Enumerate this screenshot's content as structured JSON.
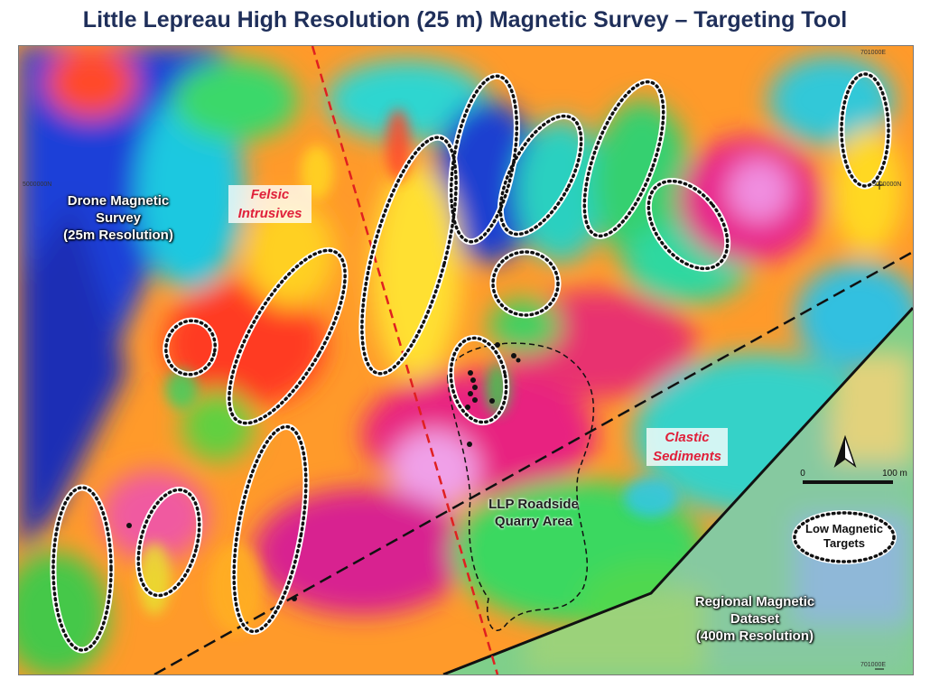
{
  "title": "Little Lepreau High Resolution (25 m) Magnetic Survey – Targeting Tool",
  "map": {
    "labels": {
      "drone_line1": "Drone Magnetic",
      "drone_line2": "Survey",
      "drone_line3": "(25m Resolution)",
      "felsic_line1": "Felsic",
      "felsic_line2": "Intrusives",
      "clastic_line1": "Clastic",
      "clastic_line2": "Sediments",
      "quarry_line1": "LLP Roadside",
      "quarry_line2": "Quarry Area",
      "regional_line1": "Regional Magnetic",
      "regional_line2": "Dataset",
      "regional_line3": "(400m Resolution)"
    },
    "legend": {
      "target_line1": "Low Magnetic",
      "target_line2": "Targets"
    },
    "scale_bar": {
      "start": "0",
      "end": "100 m"
    },
    "north_arrow": "north-arrow",
    "coords": {
      "top_right": "701000E",
      "bottom_right": "701000E",
      "left_mid": "5000000N",
      "right_mid": "5000000N"
    },
    "colors": {
      "title": "#1f2f5a",
      "fault_line": "#e02020",
      "contact_line": "#111111",
      "target_outline": "#111111",
      "felsic_text": "#e0203a"
    }
  }
}
